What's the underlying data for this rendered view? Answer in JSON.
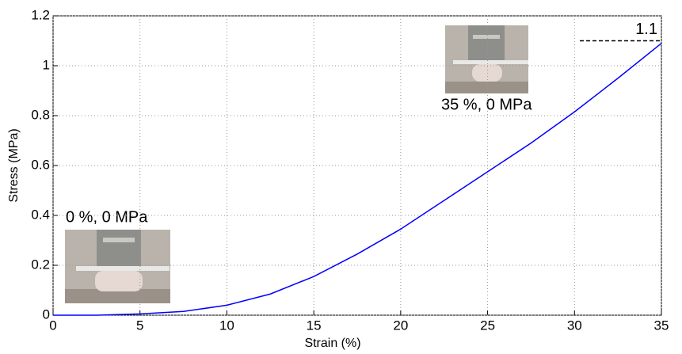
{
  "chart_data": {
    "type": "line",
    "xlabel": "Strain (%)",
    "ylabel": "Stress (MPa)",
    "x": [
      0,
      2.5,
      5,
      7.5,
      10,
      12.5,
      15,
      17.5,
      20,
      22.5,
      25,
      27.5,
      30,
      32.5,
      35
    ],
    "values": [
      0,
      0,
      0.005,
      0.015,
      0.04,
      0.085,
      0.155,
      0.245,
      0.345,
      0.46,
      0.575,
      0.69,
      0.815,
      0.95,
      1.09
    ],
    "color": "#0000ff",
    "xlim": [
      0,
      35
    ],
    "xticks": [
      0,
      5,
      10,
      15,
      20,
      25,
      30,
      35
    ],
    "ylim": [
      0,
      1.2
    ],
    "yticks": [
      0,
      0.2,
      0.4,
      0.6,
      0.8,
      1,
      1.2
    ],
    "grid": true,
    "hline": 1.1,
    "annotations": [
      "0 %, 0 MPa",
      "35 %, 0 MPa"
    ]
  }
}
